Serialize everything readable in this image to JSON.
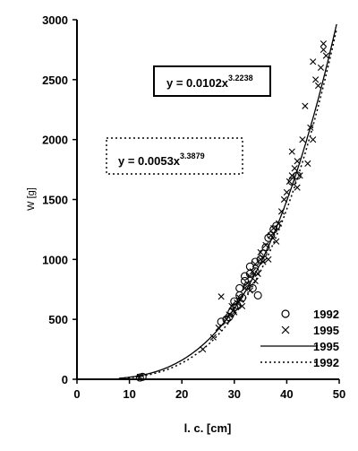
{
  "chart_data": {
    "type": "scatter",
    "title": "",
    "xlabel": "l. c. [cm]",
    "ylabel": "W [g]",
    "xlim": [
      0,
      50
    ],
    "ylim": [
      0,
      3000
    ],
    "x_ticks": [
      "0",
      "10",
      "20",
      "30",
      "40",
      "50"
    ],
    "y_ticks": [
      "0",
      "500",
      "1000",
      "1500",
      "2000",
      "2500",
      "3000"
    ],
    "grid": false,
    "legend_position": "bottom-right",
    "series": [
      {
        "name": "1992",
        "kind": "points",
        "marker": "circle",
        "points": [
          [
            12,
            15
          ],
          [
            12.5,
            20
          ],
          [
            27.5,
            480
          ],
          [
            28.5,
            500
          ],
          [
            29,
            520
          ],
          [
            29.5,
            560
          ],
          [
            30,
            600
          ],
          [
            30,
            650
          ],
          [
            30.5,
            620
          ],
          [
            31,
            700
          ],
          [
            31,
            760
          ],
          [
            31.5,
            680
          ],
          [
            32,
            820
          ],
          [
            32,
            860
          ],
          [
            32.5,
            780
          ],
          [
            33,
            880
          ],
          [
            33,
            940
          ],
          [
            33.5,
            760
          ],
          [
            34,
            900
          ],
          [
            34,
            980
          ],
          [
            34.5,
            700
          ],
          [
            35,
            1000
          ],
          [
            35.5,
            1050
          ],
          [
            36,
            1100
          ],
          [
            36.5,
            1180
          ],
          [
            37,
            1200
          ],
          [
            37.5,
            1250
          ],
          [
            38,
            1280
          ],
          [
            41,
            1650
          ],
          [
            42,
            1700
          ]
        ]
      },
      {
        "name": "1995",
        "kind": "points",
        "marker": "x",
        "points": [
          [
            12,
            20
          ],
          [
            24,
            250
          ],
          [
            26,
            350
          ],
          [
            27,
            430
          ],
          [
            27.5,
            690
          ],
          [
            28.5,
            500
          ],
          [
            29,
            540
          ],
          [
            29.5,
            610
          ],
          [
            30,
            560
          ],
          [
            30.5,
            640
          ],
          [
            31,
            680
          ],
          [
            31.5,
            610
          ],
          [
            32,
            760
          ],
          [
            32.5,
            800
          ],
          [
            33,
            740
          ],
          [
            33,
            860
          ],
          [
            33.5,
            900
          ],
          [
            34,
            960
          ],
          [
            34,
            820
          ],
          [
            34.5,
            880
          ],
          [
            35,
            1000
          ],
          [
            35,
            1060
          ],
          [
            35.5,
            980
          ],
          [
            36,
            1120
          ],
          [
            36.5,
            1000
          ],
          [
            37,
            1200
          ],
          [
            37.5,
            1260
          ],
          [
            38,
            1150
          ],
          [
            38.5,
            1300
          ],
          [
            39,
            1400
          ],
          [
            39.5,
            1500
          ],
          [
            40,
            1560
          ],
          [
            40.5,
            1650
          ],
          [
            41,
            1700
          ],
          [
            41,
            1900
          ],
          [
            41.5,
            1760
          ],
          [
            42,
            1820
          ],
          [
            42,
            1600
          ],
          [
            42.5,
            1700
          ],
          [
            43,
            2000
          ],
          [
            43.5,
            2280
          ],
          [
            44,
            1800
          ],
          [
            44.5,
            2100
          ],
          [
            45,
            2000
          ],
          [
            45,
            2650
          ],
          [
            45.5,
            2500
          ],
          [
            46,
            2450
          ],
          [
            46.5,
            2600
          ],
          [
            47,
            2750
          ],
          [
            47,
            2800
          ],
          [
            47.5,
            2700
          ]
        ]
      },
      {
        "name": "1995",
        "kind": "curve",
        "line": "solid",
        "a": 0.0102,
        "b": 3.2238,
        "x_range": [
          8,
          49.5
        ]
      },
      {
        "name": "1992",
        "kind": "curve",
        "line": "dotted",
        "a": 0.0053,
        "b": 3.3879,
        "x_range": [
          8,
          49.5
        ]
      }
    ],
    "annotations": [
      {
        "id": "eq_1995",
        "prefix": "y = 0.0102x",
        "exponent": "3.2238",
        "box": "solid"
      },
      {
        "id": "eq_1992",
        "prefix": "y = 0.0053x",
        "exponent": "3.3879",
        "box": "dotted"
      }
    ]
  }
}
